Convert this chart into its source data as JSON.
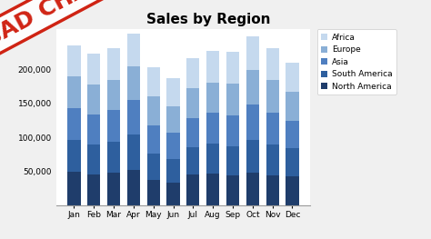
{
  "title": "Sales by Region",
  "months": [
    "Jan",
    "Feb",
    "Mar",
    "Apr",
    "May",
    "Jun",
    "Jul",
    "Aug",
    "Sep",
    "Oct",
    "Nov",
    "Dec"
  ],
  "regions": [
    "North America",
    "South America",
    "Asia",
    "Europe",
    "Africa"
  ],
  "colors": [
    "#1F3D6B",
    "#2E5F9E",
    "#4F7FC0",
    "#8AAFD6",
    "#C5D9EE"
  ],
  "data": {
    "North America": [
      50000,
      46000,
      48000,
      52000,
      37000,
      33000,
      45000,
      47000,
      44000,
      48000,
      44000,
      43000
    ],
    "South America": [
      47000,
      44000,
      46000,
      52000,
      40000,
      36000,
      41000,
      44000,
      43000,
      49000,
      46000,
      41000
    ],
    "Asia": [
      46000,
      44000,
      46000,
      51000,
      41000,
      38000,
      42000,
      45000,
      46000,
      51000,
      47000,
      41000
    ],
    "Europe": [
      47000,
      44000,
      45000,
      49000,
      42000,
      39000,
      44000,
      45000,
      46000,
      51000,
      47000,
      42000
    ],
    "Africa": [
      46000,
      45000,
      46000,
      49000,
      43000,
      41000,
      45000,
      46000,
      47000,
      50000,
      47000,
      43000
    ]
  },
  "ylim": [
    0,
    260000
  ],
  "yticks": [
    50000,
    100000,
    150000,
    200000
  ],
  "title_fontsize": 11,
  "legend_fontsize": 6.5,
  "tick_fontsize": 6.5,
  "bad_chart_color": "#CC1100",
  "figure_bg": "#F0F0F0",
  "plot_bg": "#FFFFFF"
}
